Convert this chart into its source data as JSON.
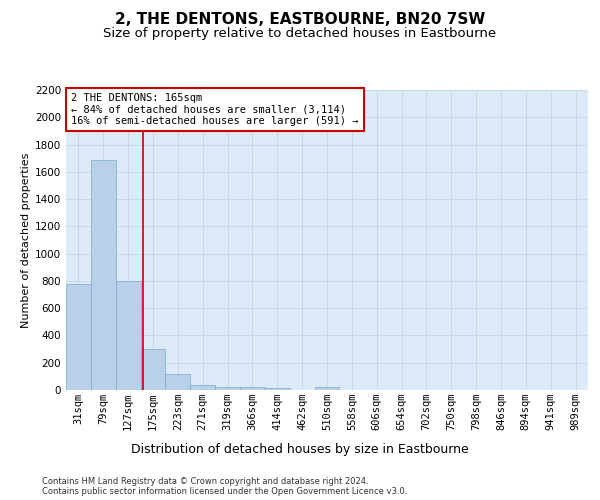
{
  "title": "2, THE DENTONS, EASTBOURNE, BN20 7SW",
  "subtitle": "Size of property relative to detached houses in Eastbourne",
  "xlabel": "Distribution of detached houses by size in Eastbourne",
  "ylabel": "Number of detached properties",
  "footer_line1": "Contains HM Land Registry data © Crown copyright and database right 2024.",
  "footer_line2": "Contains public sector information licensed under the Open Government Licence v3.0.",
  "bar_labels": [
    "31sqm",
    "79sqm",
    "127sqm",
    "175sqm",
    "223sqm",
    "271sqm",
    "319sqm",
    "366sqm",
    "414sqm",
    "462sqm",
    "510sqm",
    "558sqm",
    "606sqm",
    "654sqm",
    "702sqm",
    "750sqm",
    "798sqm",
    "846sqm",
    "894sqm",
    "941sqm",
    "989sqm"
  ],
  "bar_values": [
    775,
    1690,
    800,
    300,
    115,
    38,
    22,
    20,
    15,
    0,
    20,
    0,
    0,
    0,
    0,
    0,
    0,
    0,
    0,
    0,
    0
  ],
  "bar_color": "#b8d0e8",
  "bar_edge_color": "#7aaace",
  "ylim": [
    0,
    2200
  ],
  "yticks": [
    0,
    200,
    400,
    600,
    800,
    1000,
    1200,
    1400,
    1600,
    1800,
    2000,
    2200
  ],
  "vline_color": "#cc0000",
  "annotation_text": "2 THE DENTONS: 165sqm\n← 84% of detached houses are smaller (3,114)\n16% of semi-detached houses are larger (591) →",
  "annotation_box_color": "#cc0000",
  "grid_color": "#c8d8e8",
  "background_color": "#ddeaf7",
  "title_fontsize": 11,
  "subtitle_fontsize": 9.5,
  "xlabel_fontsize": 9,
  "ylabel_fontsize": 8,
  "tick_fontsize": 7.5,
  "annotation_fontsize": 7.5,
  "footer_fontsize": 6
}
